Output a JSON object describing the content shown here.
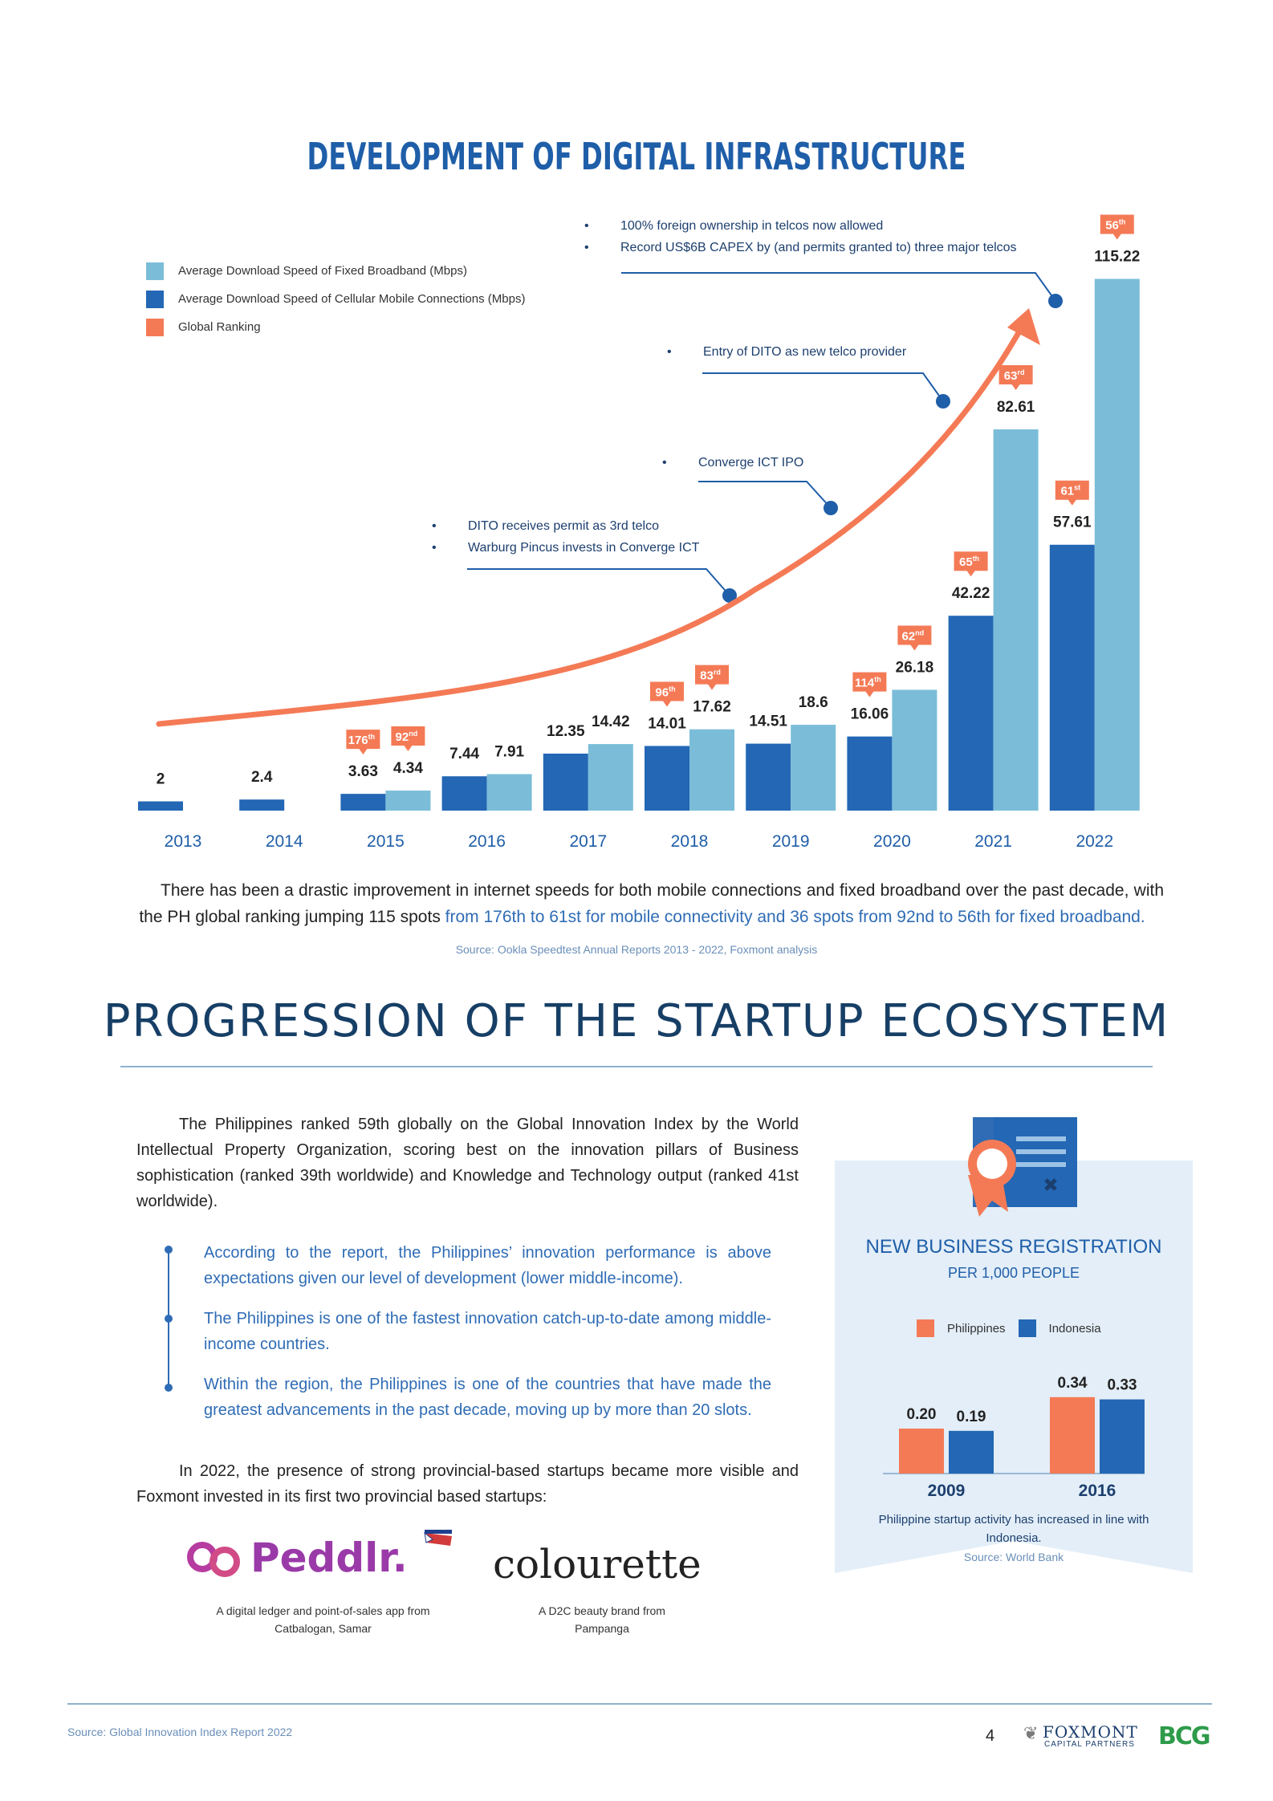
{
  "section1": {
    "title": "DEVELOPMENT OF DIGITAL INFRASTRUCTURE",
    "legend": [
      {
        "label": "Average Download Speed of Fixed Broadband (Mbps)",
        "color": "#7bbdd8"
      },
      {
        "label": "Average Download Speed of Cellular Mobile Connections (Mbps)",
        "color": "#2367b5"
      },
      {
        "label": "Global Ranking",
        "color": "#f47a56"
      }
    ],
    "annotations": {
      "a1": [
        "100% foreign ownership in telcos now allowed",
        "Record US$6B CAPEX by (and permits granted to) three major telcos"
      ],
      "a2": [
        "Entry of DITO as new telco provider"
      ],
      "a3": [
        "Converge ICT IPO"
      ],
      "a4": [
        "DITO receives permit as 3rd telco",
        "Warburg Pincus invests in Converge ICT"
      ]
    },
    "paragraph_plain": "There has been a drastic improvement in internet speeds for both mobile connections and fixed broadband over the past decade, with the PH global ranking jumping 115 spots",
    "paragraph_highlight": "from 176th to 61st for mobile connectivity and 36 spots from 92nd to 56th for fixed broadband.",
    "source": "Source: Ookla Speedtest Annual Reports 2013 - 2022, Foxmont analysis"
  },
  "chart_data": {
    "type": "bar",
    "categories": [
      "2013",
      "2014",
      "2015",
      "2016",
      "2017",
      "2018",
      "2019",
      "2020",
      "2021",
      "2022"
    ],
    "series": [
      {
        "name": "Average Download Speed of Cellular Mobile Connections (Mbps)",
        "color": "#2367b5",
        "values": [
          2,
          2.4,
          3.63,
          7.44,
          12.35,
          14.01,
          14.51,
          16.06,
          42.22,
          57.61
        ],
        "labels": [
          "2",
          "2.4",
          "3.63",
          "7.44",
          "12.35",
          "14.01",
          "14.51",
          "16.06",
          "42.22",
          "57.61"
        ],
        "rankings": [
          null,
          null,
          "176",
          null,
          null,
          "96",
          null,
          "114",
          "65",
          "61"
        ],
        "ranking_suffix": [
          null,
          null,
          "th",
          null,
          null,
          "th",
          null,
          "th",
          "th",
          "st"
        ]
      },
      {
        "name": "Average Download Speed of Fixed Broadband (Mbps)",
        "color": "#7bbdd8",
        "values": [
          null,
          null,
          4.34,
          7.91,
          14.42,
          17.62,
          18.6,
          26.18,
          82.61,
          115.22
        ],
        "labels": [
          null,
          null,
          "4.34",
          "7.91",
          "14.42",
          "17.62",
          "18.6",
          "26.18",
          "82.61",
          "115.22"
        ],
        "rankings": [
          null,
          null,
          "92",
          null,
          null,
          "83",
          null,
          "62",
          "63",
          "56"
        ],
        "ranking_suffix": [
          null,
          null,
          "nd",
          null,
          null,
          "rd",
          null,
          "nd",
          "rd",
          "th"
        ]
      }
    ],
    "ylim": [
      0,
      120
    ],
    "title": "",
    "xlabel": "",
    "ylabel": ""
  },
  "section2": {
    "title": "PROGRESSION OF THE STARTUP ECOSYSTEM",
    "intro": "The Philippines ranked 59th globally on the Global Innovation Index by the World Intellectual Property Organization, scoring best on the innovation pillars of Business sophistication (ranked 39th worldwide) and Knowledge and Technology output (ranked 41st worldwide).",
    "bullets": [
      "According to the report, the Philippines’ innovation performance is above expectations given our level of development (lower middle-income).",
      "The Philippines is one of the fastest innovation catch-up-to-date among middle-income countries.",
      "Within the region, the Philippines is one of the countries that have made the greatest advancements in the past decade, moving up by more than 20 slots."
    ],
    "provincial": "In 2022, the presence of strong provincial-based startups became more visible and Foxmont invested in its first two provincial based startups:",
    "startups": [
      {
        "name": "Peddlr.",
        "desc": "A digital ledger and point-of-sales app from Catbalogan, Samar"
      },
      {
        "name": "colourette",
        "desc": "A D2C beauty brand from Pampanga"
      }
    ]
  },
  "panel": {
    "title": "NEW BUSINESS REGISTRATION",
    "subtitle": "PER 1,000 PEOPLE",
    "legend": [
      {
        "label": "Philippines",
        "color": "#f47a56"
      },
      {
        "label": "Indonesia",
        "color": "#2367b5"
      }
    ],
    "chart": {
      "type": "bar",
      "categories": [
        "2009",
        "2016"
      ],
      "series": [
        {
          "name": "Philippines",
          "values": [
            0.2,
            0.34
          ],
          "labels": [
            "0.20",
            "0.34"
          ]
        },
        {
          "name": "Indonesia",
          "values": [
            0.19,
            0.33
          ],
          "labels": [
            "0.19",
            "0.33"
          ]
        }
      ]
    },
    "caption": "Philippine startup activity has increased in line with Indonesia.",
    "source": "Source: World Bank"
  },
  "footer": {
    "source": "Source: Global Innovation Index Report 2022",
    "page": "4",
    "logo1_main": "FOXMONT",
    "logo1_sub": "CAPITAL PARTNERS",
    "logo2": "BCG"
  }
}
